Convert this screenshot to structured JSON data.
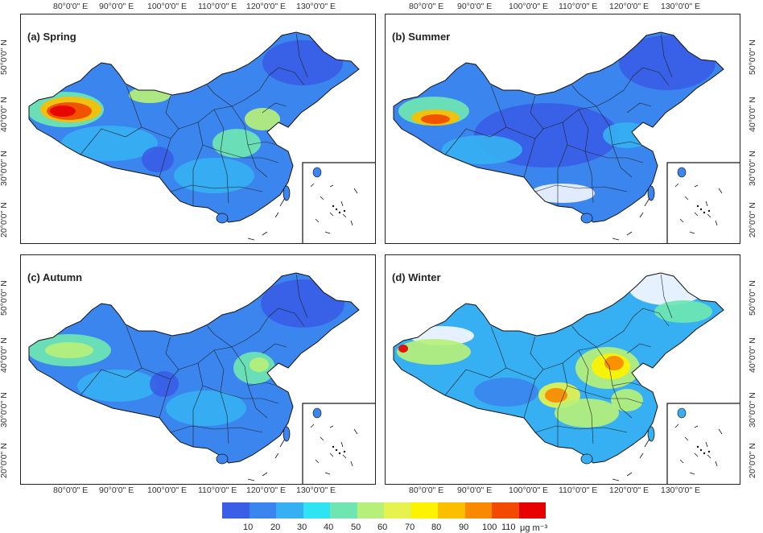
{
  "x_ticks": [
    "80°0'0\" E",
    "90°0'0\" E",
    "100°0'0\" E",
    "110°0'0\" E",
    "120°0'0\" E",
    "130°0'0\" E"
  ],
  "y_ticks": [
    "50°0'0\" N",
    "40°0'0\" N",
    "30°0'0\" N",
    "20°0'0\" N"
  ],
  "panels": [
    {
      "title": "(a) Spring",
      "season": "spring"
    },
    {
      "title": "(b) Summer",
      "season": "summer"
    },
    {
      "title": "(c) Autumn",
      "season": "autumn"
    },
    {
      "title": "(d) Winter",
      "season": "winter"
    }
  ],
  "legend": {
    "labels": [
      "10",
      "20",
      "30",
      "40",
      "50",
      "60",
      "70",
      "80",
      "90",
      "100",
      "110"
    ],
    "unit": "μg m⁻³",
    "colors": [
      "#3a5ee6",
      "#3b86ee",
      "#36b0f2",
      "#2fe4f2",
      "#6fe6b2",
      "#b6f07a",
      "#e6f24e",
      "#fdf200",
      "#fbbf00",
      "#f98a00",
      "#f24a00",
      "#e60000"
    ]
  }
}
